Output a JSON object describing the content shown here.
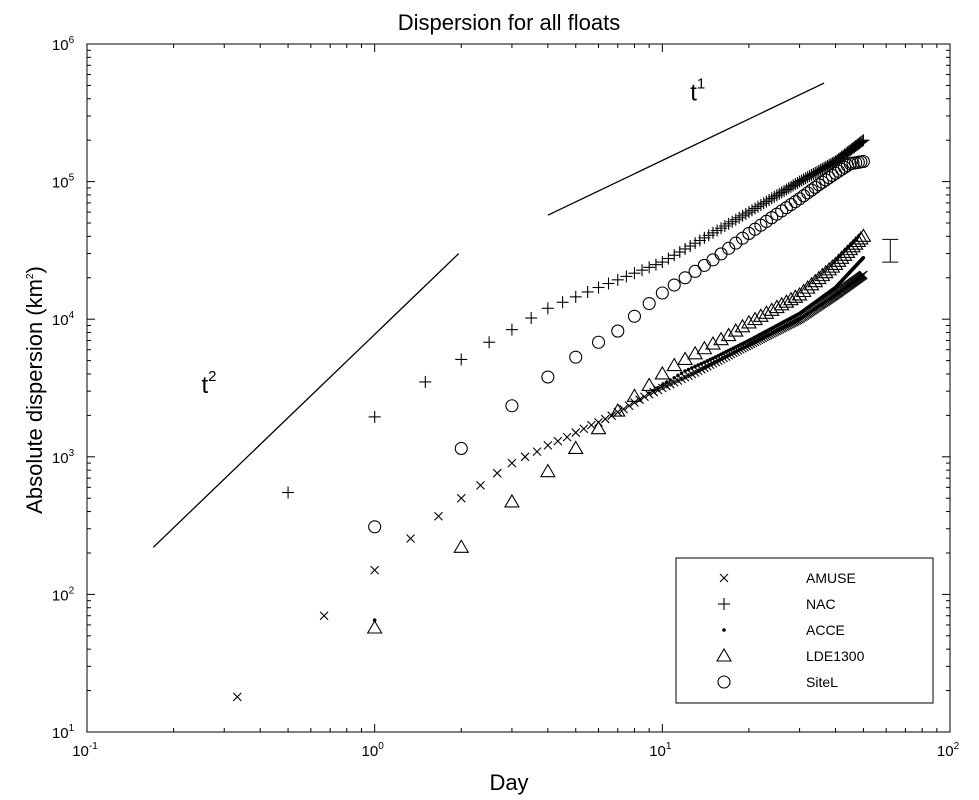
{
  "chart_data": {
    "type": "scatter",
    "title": "Dispersion for all floats",
    "xlabel": "Day",
    "ylabel_prefix": "Absolute dispersion (km",
    "ylabel_exp": "2",
    "ylabel_suffix": ")",
    "x_scale": "log",
    "y_scale": "log",
    "xlim": [
      0.1,
      100
    ],
    "ylim": [
      10,
      1000000
    ],
    "x_ticks": [
      {
        "value": 0.1,
        "base": "10",
        "exp": "-1"
      },
      {
        "value": 1,
        "base": "10",
        "exp": "0"
      },
      {
        "value": 10,
        "base": "10",
        "exp": "1"
      },
      {
        "value": 100,
        "base": "10",
        "exp": "2"
      }
    ],
    "y_ticks": [
      {
        "value": 10,
        "base": "10",
        "exp": "1"
      },
      {
        "value": 100,
        "base": "10",
        "exp": "2"
      },
      {
        "value": 1000,
        "base": "10",
        "exp": "3"
      },
      {
        "value": 10000,
        "base": "10",
        "exp": "4"
      },
      {
        "value": 100000,
        "base": "10",
        "exp": "5"
      },
      {
        "value": 1000000,
        "base": "10",
        "exp": "6"
      }
    ],
    "grid": false,
    "legend_position": "bottom-right",
    "reference_lines": [
      {
        "label_base": "t",
        "label_exp": "2",
        "from": [
          0.17,
          220
        ],
        "to": [
          1.96,
          30000
        ],
        "label_at": [
          0.25,
          2900
        ]
      },
      {
        "label_base": "t",
        "label_exp": "1",
        "from": [
          4.0,
          57000
        ],
        "to": [
          36.5,
          520000
        ],
        "label_at": [
          12.5,
          390000
        ]
      }
    ],
    "error_bar": {
      "x": 62,
      "low": 26000,
      "high": 38000
    },
    "series": [
      {
        "name": "AMUSE",
        "marker": "x",
        "x": [],
        "y": []
      },
      {
        "name": "NAC",
        "marker": "+",
        "x": [],
        "y": []
      },
      {
        "name": "ACCE",
        "marker": "dot",
        "x": [],
        "y": []
      },
      {
        "name": "LDE1300",
        "marker": "triangle",
        "x": [],
        "y": []
      },
      {
        "name": "SiteL",
        "marker": "circle",
        "x": [],
        "y": []
      }
    ]
  }
}
